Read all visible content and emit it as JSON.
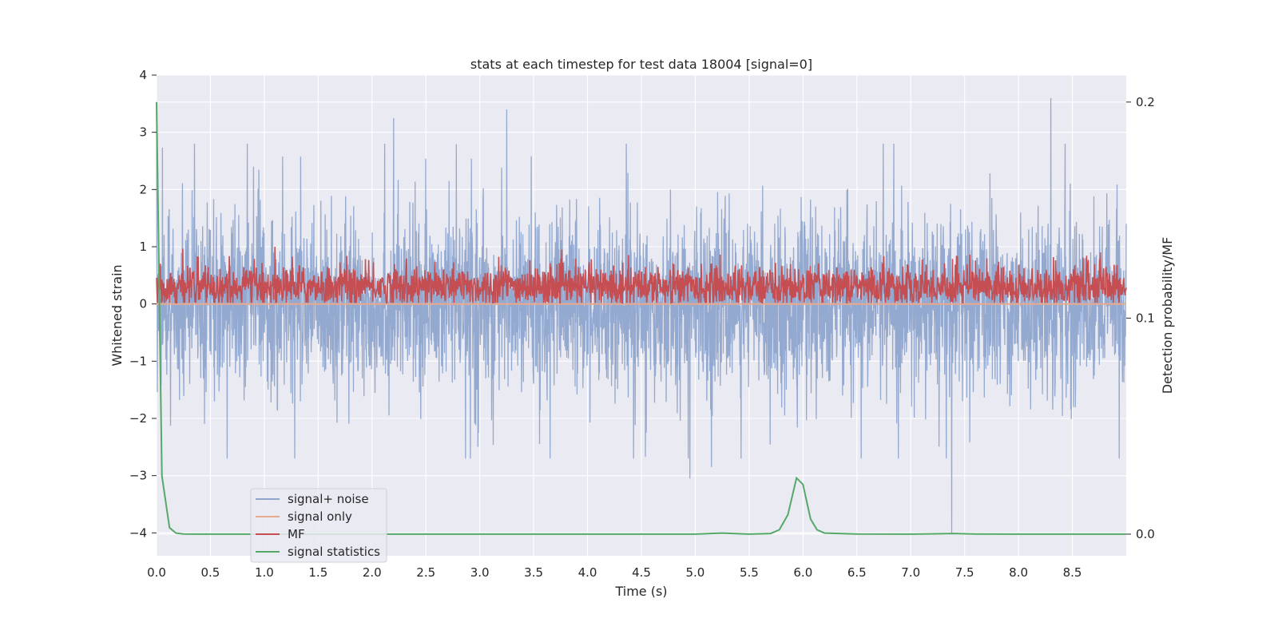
{
  "chart_data": {
    "type": "line",
    "title": "stats at each timestep for test data 18004 [signal=0]",
    "xlabel": "Time (s)",
    "ylabel": "Whitened strain",
    "y2label": "Detection probability/MF",
    "xlim": [
      0.0,
      9.0
    ],
    "ylim": [
      -4.4,
      4.0
    ],
    "y2lim": [
      -0.01,
      0.2125
    ],
    "x_ticks": [
      "0.0",
      "0.5",
      "1.0",
      "1.5",
      "2.0",
      "2.5",
      "3.0",
      "3.5",
      "4.0",
      "4.5",
      "5.0",
      "5.5",
      "6.0",
      "6.5",
      "7.0",
      "7.5",
      "8.0",
      "8.5"
    ],
    "y_ticks": [
      "−4",
      "−3",
      "−2",
      "−1",
      "0",
      "1",
      "2",
      "3",
      "4"
    ],
    "y2_ticks": [
      "0.0",
      "0.1",
      "0.2"
    ],
    "grid": true,
    "legend_position": "lower-left",
    "series": [
      {
        "name": "signal+ noise",
        "axis": "left",
        "color": "#8fa5cc",
        "description_points": {
          "x": [
            0.0,
            0.9,
            2.2,
            3.25,
            4.95,
            5.15,
            7.38,
            8.3,
            9.0
          ],
          "y": [
            3.5,
            2.4,
            3.25,
            3.4,
            -3.05,
            -2.85,
            -4.0,
            3.6,
            1.4
          ]
        }
      },
      {
        "name": "signal only",
        "axis": "left",
        "color": "#e8a98e",
        "x": [
          0.0,
          9.0
        ],
        "y": [
          0.0,
          0.0
        ]
      },
      {
        "name": "MF",
        "axis": "left",
        "color": "#c44e52",
        "x": [
          0.0,
          9.0
        ],
        "y": [
          0.3,
          0.3
        ]
      },
      {
        "name": "signal statistics",
        "axis": "right",
        "color": "#55a868",
        "x": [
          0.0,
          0.05,
          0.12,
          0.18,
          0.25,
          0.4,
          0.6,
          1.0,
          2.0,
          3.0,
          4.0,
          5.0,
          5.25,
          5.5,
          5.7,
          5.78,
          5.86,
          5.94,
          6.0,
          6.07,
          6.13,
          6.2,
          6.5,
          7.0,
          7.4,
          7.6,
          8.0,
          9.0
        ],
        "y": [
          0.2,
          0.027,
          0.003,
          0.0005,
          0.0001,
          0.0,
          0.0,
          0.0,
          0.0,
          0.0,
          0.0,
          0.0,
          0.0005,
          0.0,
          0.0003,
          0.002,
          0.009,
          0.026,
          0.023,
          0.007,
          0.002,
          0.0005,
          0.0001,
          0.0,
          0.0003,
          0.0001,
          0.0,
          0.0
        ]
      }
    ]
  },
  "colors": {
    "plot_background": "#eaeaf2",
    "grid": "#ffffff",
    "noise": "#8fa5cc",
    "signal_only": "#e8a98e",
    "mf": "#c44e52",
    "stats": "#55a868"
  }
}
